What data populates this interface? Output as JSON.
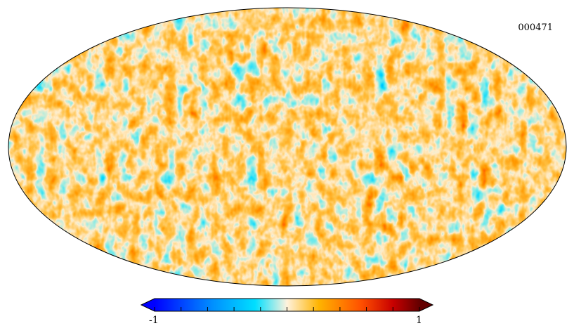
{
  "map": {
    "id_label": "000471",
    "projection": "mollweide",
    "colormap": "planck",
    "background": "#ffffff",
    "outline_color": "#000000"
  },
  "colorbar": {
    "min_label": "-1",
    "max_label": "1",
    "ticks": 11,
    "extend": "both",
    "colors": [
      "#0000ff",
      "#00a0ff",
      "#00e0ff",
      "#ffeecc",
      "#ffb000",
      "#ff4a00",
      "#e00000",
      "#640000"
    ]
  }
}
